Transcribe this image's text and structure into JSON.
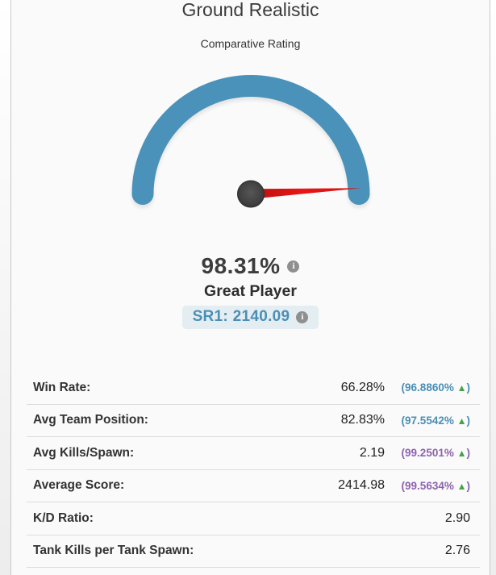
{
  "colors": {
    "arc": "#4a92ba",
    "needle_dark": "#b90e0e",
    "needle": "#e51717",
    "hub_light": "#555555",
    "hub": "#373737",
    "badge_bg": "#e3edf2",
    "badge_text": "#4a8fb5",
    "pct_blue": "#4a8fb5",
    "pct_purple": "#8d62ae",
    "arrow_green": "#44a248",
    "info_icon": "#8f8f8f"
  },
  "chart_data": {
    "type": "gauge",
    "title": "Ground Realistic",
    "subtitle": "Comparative Rating",
    "value": 98.31,
    "min": 0,
    "max": 100,
    "unit": "%",
    "value_label": "98.31%",
    "rating_label": "Great Player",
    "secondary_label": "SR1: 2140.09",
    "gauge_span_degrees": 180,
    "legend_position": "none",
    "table": [
      {
        "label": "Win Rate:",
        "value": "66.28%",
        "percentile": "96.8860%",
        "trend": "up",
        "color": "blue"
      },
      {
        "label": "Avg Team Position:",
        "value": "82.83%",
        "percentile": "97.5542%",
        "trend": "up",
        "color": "blue"
      },
      {
        "label": "Avg Kills/Spawn:",
        "value": "2.19",
        "percentile": "99.2501%",
        "trend": "up",
        "color": "purple"
      },
      {
        "label": "Average Score:",
        "value": "2414.98",
        "percentile": "99.5634%",
        "trend": "up",
        "color": "purple"
      },
      {
        "label": "K/D Ratio:",
        "value": "2.90"
      },
      {
        "label": "Tank Kills per Tank Spawn:",
        "value": "2.76"
      }
    ]
  },
  "stats": {
    "percentile_prefix": "(",
    "percentile_suffix": ")",
    "arrow_up": "▲"
  },
  "info_icon_glyph": "i"
}
